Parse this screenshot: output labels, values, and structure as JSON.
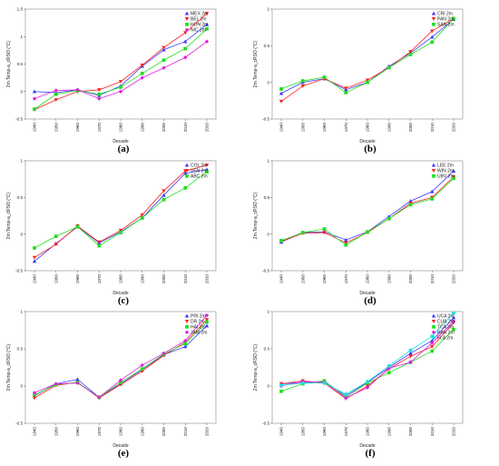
{
  "chart_data": [
    {
      "panel_label": "(a)",
      "type": "line",
      "xlabel": "Decade",
      "ylabel": "2m Temp-a_cRSO (°C)",
      "x": [
        "1940",
        "1950",
        "1960",
        "1970",
        "1980",
        "1990",
        "2000",
        "2010",
        "2020"
      ],
      "ylim": [
        -0.5,
        1.5
      ],
      "yticks": [
        "-0.5",
        "0",
        "0.5",
        "1",
        "1.5"
      ],
      "legend_position": "top-right",
      "series": [
        {
          "name": "MEX 2m",
          "marker": "triangle-up",
          "color": "#3a3aff",
          "values": [
            0.0,
            -0.02,
            0.03,
            -0.07,
            0.1,
            0.46,
            0.76,
            0.91,
            1.22
          ]
        },
        {
          "name": "BEL 2m",
          "marker": "triangle-down",
          "color": "#ff2020",
          "values": [
            -0.33,
            -0.15,
            0.0,
            0.03,
            0.18,
            0.48,
            0.8,
            1.07,
            1.42
          ]
        },
        {
          "name": "HON 2m",
          "marker": "square",
          "color": "#22dd22",
          "values": [
            -0.32,
            -0.05,
            0.02,
            -0.05,
            0.08,
            0.33,
            0.57,
            0.78,
            1.14
          ]
        },
        {
          "name": "NIC 2m",
          "marker": "diamond",
          "color": "#dd22dd",
          "values": [
            -0.13,
            0.02,
            0.03,
            -0.13,
            0.0,
            0.25,
            0.43,
            0.62,
            0.91
          ]
        }
      ]
    },
    {
      "panel_label": "(b)",
      "type": "line",
      "xlabel": "Decade",
      "ylabel": "2m Temp-a_cRSO (°C)",
      "x": [
        "1940",
        "1950",
        "1960",
        "1970",
        "1980",
        "1990",
        "2000",
        "2010",
        "2020"
      ],
      "ylim": [
        -0.5,
        1.0
      ],
      "yticks": [
        "-0.5",
        "0",
        "0.5",
        "1"
      ],
      "legend_position": "top-right",
      "series": [
        {
          "name": "CRI 2m",
          "marker": "triangle-up",
          "color": "#3a3aff",
          "values": [
            -0.15,
            0.0,
            0.05,
            -0.1,
            0.0,
            0.22,
            0.4,
            0.62,
            0.86
          ]
        },
        {
          "name": "PAN 2m",
          "marker": "triangle-down",
          "color": "#ff2020",
          "values": [
            -0.26,
            -0.05,
            0.05,
            -0.08,
            0.03,
            0.2,
            0.42,
            0.7,
            0.87
          ]
        },
        {
          "name": "SAN 2m",
          "marker": "square",
          "color": "#22dd22",
          "values": [
            -0.09,
            0.02,
            0.07,
            -0.14,
            0.0,
            0.2,
            0.38,
            0.55,
            0.87
          ]
        }
      ]
    },
    {
      "panel_label": "(c)",
      "type": "line",
      "xlabel": "Decade",
      "ylabel": "2m Temp-a_cRSO (°C)",
      "x": [
        "1940",
        "1950",
        "1960",
        "1970",
        "1980",
        "1990",
        "2000",
        "2010",
        "2020"
      ],
      "ylim": [
        -0.5,
        1.0
      ],
      "yticks": [
        "-0.5",
        "0",
        "0.5",
        "1"
      ],
      "legend_position": "top-right",
      "series": [
        {
          "name": "COL 2m",
          "marker": "triangle-up",
          "color": "#3a3aff",
          "values": [
            -0.37,
            -0.13,
            0.1,
            -0.12,
            0.03,
            0.22,
            0.53,
            0.83,
            0.88
          ]
        },
        {
          "name": "VEN 2m",
          "marker": "triangle-down",
          "color": "#ff2020",
          "values": [
            -0.32,
            -0.14,
            0.11,
            -0.11,
            0.05,
            0.26,
            0.59,
            0.86,
            0.94
          ]
        },
        {
          "name": "ABC 2m",
          "marker": "square",
          "color": "#22dd22",
          "values": [
            -0.19,
            -0.03,
            0.1,
            -0.16,
            0.02,
            0.22,
            0.47,
            0.63,
            0.85
          ]
        }
      ]
    },
    {
      "panel_label": "(d)",
      "type": "line",
      "xlabel": "Decade",
      "ylabel": "2m Temp-a_cRSO (°C)",
      "x": [
        "1940",
        "1950",
        "1960",
        "1970",
        "1980",
        "1990",
        "2000",
        "2010",
        "2020"
      ],
      "ylim": [
        -0.5,
        1.0
      ],
      "yticks": [
        "-0.5",
        "0",
        "0.5",
        "1"
      ],
      "legend_position": "top-right",
      "series": [
        {
          "name": "LEE 2m",
          "marker": "triangle-up",
          "color": "#3a3aff",
          "values": [
            -0.11,
            0.02,
            0.03,
            -0.08,
            0.03,
            0.24,
            0.45,
            0.58,
            0.86
          ]
        },
        {
          "name": "WIN 2m",
          "marker": "triangle-down",
          "color": "#ff2020",
          "values": [
            -0.1,
            0.01,
            0.02,
            -0.12,
            0.02,
            0.21,
            0.42,
            0.5,
            0.78
          ]
        },
        {
          "name": "UBV 2m",
          "marker": "square",
          "color": "#22dd22",
          "values": [
            -0.09,
            0.02,
            0.07,
            -0.15,
            0.03,
            0.21,
            0.4,
            0.48,
            0.76
          ]
        }
      ]
    },
    {
      "panel_label": "(e)",
      "type": "line",
      "xlabel": "Decade",
      "ylabel": "2m Temp-a_cRSO (°C)",
      "x": [
        "1940",
        "1950",
        "1960",
        "1970",
        "1980",
        "1990",
        "2000",
        "2010",
        "2020"
      ],
      "ylim": [
        -0.5,
        1.0
      ],
      "yticks": [
        "-0.5",
        "0",
        "0.5",
        "1"
      ],
      "legend_position": "top-right",
      "series": [
        {
          "name": "PRI 2m",
          "marker": "triangle-up",
          "color": "#3a3aff",
          "values": [
            -0.13,
            0.03,
            0.09,
            -0.15,
            0.03,
            0.22,
            0.42,
            0.53,
            0.81
          ]
        },
        {
          "name": "DR 2m",
          "marker": "triangle-down",
          "color": "#ff2020",
          "values": [
            -0.16,
            0.01,
            0.05,
            -0.16,
            0.02,
            0.2,
            0.41,
            0.59,
            0.89
          ]
        },
        {
          "name": "HAI 2m",
          "marker": "square",
          "color": "#22dd22",
          "values": [
            -0.12,
            0.02,
            0.05,
            -0.15,
            0.05,
            0.23,
            0.43,
            0.57,
            0.86
          ]
        },
        {
          "name": "JAM 2m",
          "marker": "diamond",
          "color": "#dd22dd",
          "values": [
            -0.09,
            0.03,
            0.04,
            -0.15,
            0.08,
            0.28,
            0.44,
            0.61,
            0.95
          ]
        }
      ]
    },
    {
      "panel_label": "(f)",
      "type": "line",
      "xlabel": "Decade",
      "ylabel": "2m Temp-a_cRSO (°C)",
      "x": [
        "1940",
        "1950",
        "1960",
        "1970",
        "1980",
        "1990",
        "2000",
        "2010",
        "2020"
      ],
      "ylim": [
        -0.5,
        1.0
      ],
      "yticks": [
        "-0.5",
        "0",
        "0.5",
        "1"
      ],
      "legend_position": "top-right",
      "series": [
        {
          "name": "UCA 2m",
          "marker": "triangle-up",
          "color": "#3a3aff",
          "values": [
            0.03,
            0.05,
            0.06,
            -0.13,
            0.05,
            0.25,
            0.44,
            0.61,
            0.92
          ]
        },
        {
          "name": "CUB 2m",
          "marker": "triangle-down",
          "color": "#ff2020",
          "values": [
            0.03,
            0.07,
            0.04,
            -0.17,
            0.0,
            0.23,
            0.4,
            0.53,
            0.85
          ]
        },
        {
          "name": "TCA 2m",
          "marker": "square",
          "color": "#22dd22",
          "values": [
            -0.07,
            0.03,
            0.07,
            -0.15,
            0.04,
            0.18,
            0.32,
            0.47,
            0.76
          ]
        },
        {
          "name": "BAH 2m",
          "marker": "diamond",
          "color": "#dd22dd",
          "values": [
            0.0,
            0.06,
            0.05,
            -0.16,
            -0.02,
            0.24,
            0.32,
            0.58,
            0.87
          ]
        },
        {
          "name": "FLA 2m",
          "marker": "circle",
          "color": "#22dddd",
          "values": [
            0.01,
            0.04,
            0.04,
            -0.11,
            0.06,
            0.27,
            0.48,
            0.67,
            0.98
          ]
        }
      ]
    }
  ]
}
